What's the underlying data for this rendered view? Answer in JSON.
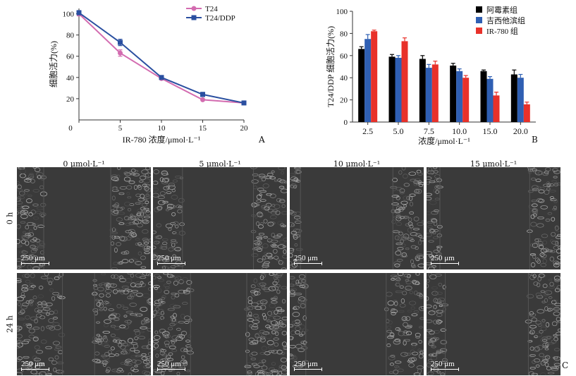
{
  "chart_data": [
    {
      "type": "line",
      "panel": "A",
      "x": [
        0,
        5,
        10,
        15,
        20
      ],
      "series": [
        {
          "name": "T24",
          "color": "#d36cb0",
          "values": [
            100,
            63,
            39,
            19,
            16
          ],
          "errors": [
            2,
            3,
            1,
            1,
            1
          ]
        },
        {
          "name": "T24/DDP",
          "color": "#2a4fa0",
          "values": [
            101,
            73,
            40,
            24,
            16
          ],
          "errors": [
            2,
            3,
            1,
            2,
            1
          ]
        }
      ],
      "xlabel": "IR-780 浓度/μmol·L⁻¹",
      "ylabel": "细胞活力(%)",
      "xticks": [
        0,
        5,
        10,
        15,
        20
      ],
      "yticks": [
        20,
        40,
        60,
        80,
        100
      ],
      "xlim": [
        0,
        20
      ],
      "ylim": [
        0,
        105
      ],
      "legend": "top-right"
    },
    {
      "type": "bar",
      "panel": "B",
      "categories": [
        "2.5",
        "5.0",
        "7.5",
        "10.0",
        "15.0",
        "20.0"
      ],
      "series": [
        {
          "name": "阿霉素组",
          "color": "#000000",
          "values": [
            66,
            59,
            57,
            51,
            46,
            43
          ],
          "errors": [
            2,
            2,
            3,
            2,
            1,
            4
          ]
        },
        {
          "name": "吉西他滨组",
          "color": "#2f5fb3",
          "values": [
            75,
            58,
            49,
            46,
            39,
            40
          ],
          "errors": [
            4,
            2,
            3,
            2,
            2,
            3
          ]
        },
        {
          "name": "IR-780 组",
          "color": "#e8312a",
          "values": [
            82,
            73,
            52,
            40,
            24,
            16
          ],
          "errors": [
            1,
            3,
            3,
            2,
            3,
            2
          ]
        }
      ],
      "xlabel": "浓度/μmol·L⁻¹",
      "ylabel": "T24/DDP 细胞活力(%)",
      "yticks": [
        0,
        20,
        40,
        60,
        80,
        100
      ],
      "ylim": [
        0,
        100
      ],
      "legend": "top-right"
    }
  ],
  "panel_labels": {
    "a": "A",
    "b": "B",
    "c": "C"
  },
  "micrographs": {
    "columns": [
      "0 μmol·L⁻¹",
      "5 μmol·L⁻¹",
      "10 μmol·L⁻¹",
      "15 μmol·L⁻¹"
    ],
    "rows": [
      "0 h",
      "24 h"
    ],
    "scale_label": "250 μm"
  }
}
